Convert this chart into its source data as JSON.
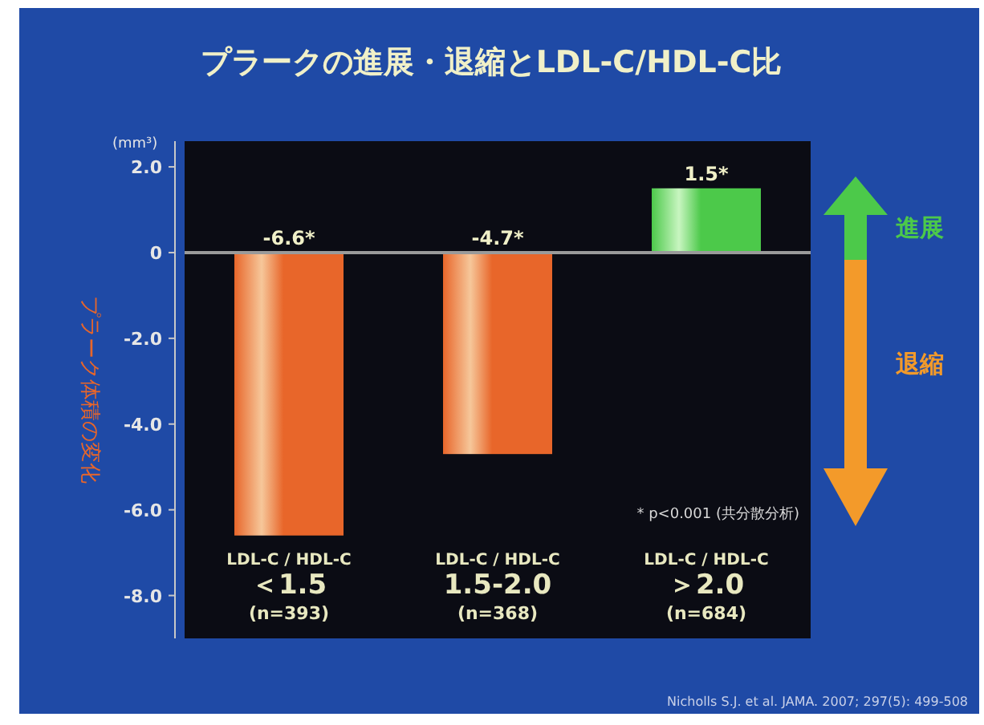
{
  "chart_data": {
    "type": "bar",
    "title": "プラークの進展・退縮とLDL-C/HDL-C比",
    "ylabel": "プラーク体積の変化",
    "categories": [
      "LDL-C / HDL-C\n＜1.5\n(n=393)",
      "LDL-C / HDL-C\n1.5-2.0\n(n=368)",
      "LDL-C / HDL-C\n＞2.0\n(n=684)"
    ],
    "values": [
      -6.6,
      -4.7,
      1.5
    ],
    "colors": [
      "#e8662a",
      "#e8662a",
      "#4cc94a"
    ],
    "value_labels": [
      "-6.6*",
      "-4.7*",
      "1.5*"
    ],
    "ylim": [
      -9.0,
      2.6
    ],
    "yticks": [
      {
        "value": 2,
        "label": "2.0"
      },
      0,
      {
        "value": -2,
        "label": "-2.0"
      },
      {
        "value": -4,
        "label": "-4.0"
      },
      {
        "value": -6,
        "label": "-6.0"
      },
      {
        "value": -8,
        "label": "-8.0"
      }
    ],
    "annotations": [
      "(mm³)",
      "* p<0.001 (共分散分析)",
      "進展",
      "退縮",
      "Nicholls S.J. et al. JAMA. 2007; 297(5): 499-508"
    ]
  }
}
